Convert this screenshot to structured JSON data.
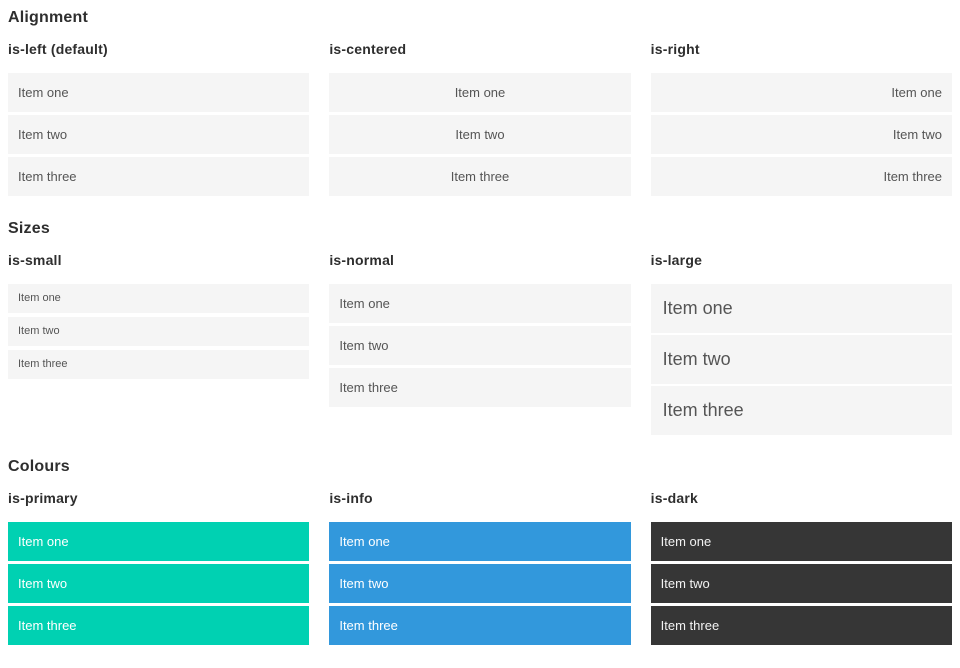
{
  "colors": {
    "item_bg": "#f5f5f5",
    "item_text": "#555555",
    "heading_text": "#2e2e2e",
    "primary": "#00d1b2",
    "info": "#3298dc",
    "dark": "#363636"
  },
  "sections": [
    {
      "title": "Alignment",
      "columns": [
        {
          "header": "is-left (default)",
          "variant": "left",
          "items": [
            "Item one",
            "Item two",
            "Item three"
          ]
        },
        {
          "header": "is-centered",
          "variant": "centered",
          "items": [
            "Item one",
            "Item two",
            "Item three"
          ]
        },
        {
          "header": "is-right",
          "variant": "right",
          "items": [
            "Item one",
            "Item two",
            "Item three"
          ]
        }
      ]
    },
    {
      "title": "Sizes",
      "columns": [
        {
          "header": "is-small",
          "variant": "small",
          "items": [
            "Item one",
            "Item two",
            "Item three"
          ]
        },
        {
          "header": "is-normal",
          "variant": "normal",
          "items": [
            "Item one",
            "Item two",
            "Item three"
          ]
        },
        {
          "header": "is-large",
          "variant": "large",
          "items": [
            "Item one",
            "Item two",
            "Item three"
          ]
        }
      ]
    },
    {
      "title": "Colours",
      "columns": [
        {
          "header": "is-primary",
          "variant": "primary",
          "items": [
            "Item one",
            "Item two",
            "Item three"
          ]
        },
        {
          "header": "is-info",
          "variant": "info",
          "items": [
            "Item one",
            "Item two",
            "Item three"
          ]
        },
        {
          "header": "is-dark",
          "variant": "dark",
          "items": [
            "Item one",
            "Item two",
            "Item three"
          ]
        }
      ]
    }
  ]
}
